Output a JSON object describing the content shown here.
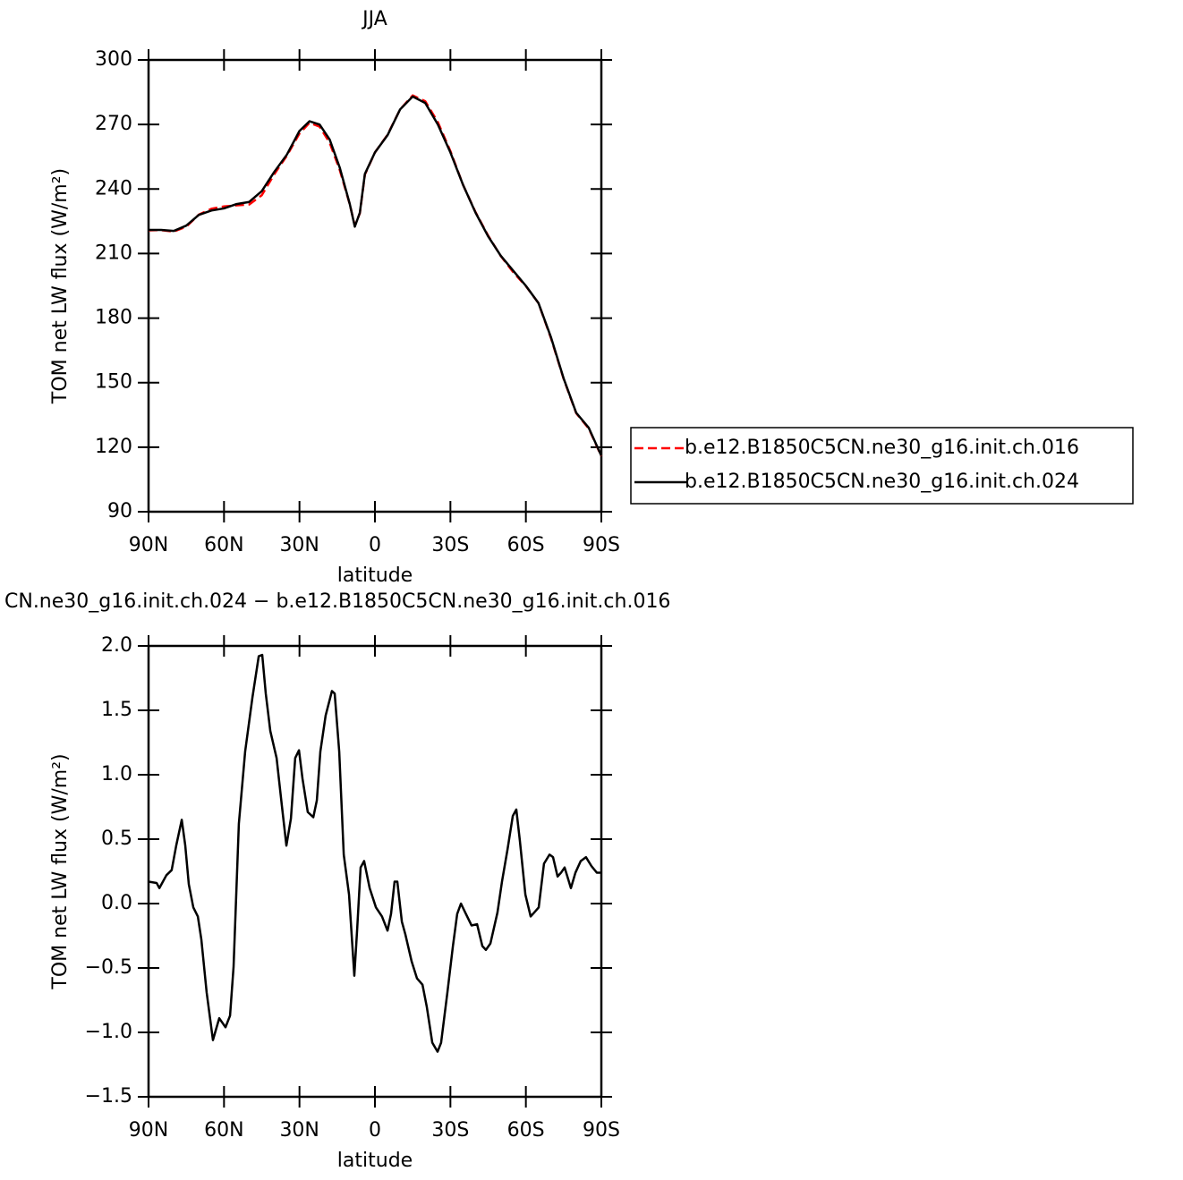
{
  "chart_data": [
    {
      "type": "line",
      "title": "JJA",
      "xlabel": "latitude",
      "ylabel": "TOM net LW flux (W/m²)",
      "x": [
        90,
        85,
        80,
        75,
        70,
        65,
        60,
        55,
        50,
        45,
        40,
        35,
        30,
        26,
        22,
        18,
        14,
        10,
        8,
        6,
        4,
        0,
        -5,
        -10,
        -15,
        -20,
        -25,
        -30,
        -35,
        -40,
        -45,
        -50,
        -55,
        -60,
        -65,
        -70,
        -75,
        -80,
        -85,
        -90
      ],
      "series": [
        {
          "name": "b.e12.B1850C5CN.ne30_g16.init.ch.016",
          "color": "#ff0000",
          "linestyle": "dashed",
          "values": [
            220.8,
            220.9,
            220.2,
            222.5,
            228.1,
            230.8,
            231.9,
            232.4,
            232.8,
            237.1,
            246.9,
            255.5,
            265.8,
            270.8,
            269,
            261.5,
            248.9,
            232.9,
            223,
            228.7,
            246.7,
            257,
            265.2,
            277,
            283.5,
            280.8,
            271.1,
            257.6,
            242,
            229.2,
            218.3,
            208.9,
            201.3,
            194.9,
            187,
            170.6,
            151.8,
            135.8,
            128.7,
            115.8
          ]
        },
        {
          "name": "b.e12.B1850C5CN.ne30_g16.init.ch.024",
          "color": "#000000",
          "linestyle": "solid",
          "values": [
            221,
            221,
            220.5,
            223,
            228,
            230,
            231,
            233,
            234,
            239,
            248,
            256,
            267,
            271.5,
            270,
            263,
            250,
            233,
            222.5,
            229,
            247,
            257,
            265,
            277,
            283,
            280,
            270,
            257,
            242,
            229,
            218,
            209,
            202,
            195,
            187,
            171,
            152,
            136,
            129,
            116
          ]
        }
      ],
      "xlim": [
        90,
        -90
      ],
      "xticks": [
        {
          "value": 90,
          "label": "90N"
        },
        {
          "value": 60,
          "label": "60N"
        },
        {
          "value": 30,
          "label": "30N"
        },
        0,
        {
          "value": -30,
          "label": "30S"
        },
        {
          "value": -60,
          "label": "60S"
        },
        {
          "value": -90,
          "label": "90S"
        }
      ],
      "ylim": [
        90,
        300
      ],
      "yticks": [
        90,
        120,
        150,
        180,
        210,
        240,
        270,
        300
      ],
      "legend": "right"
    },
    {
      "type": "line",
      "title": "CN.ne30_g16.init.ch.024 − b.e12.B1850C5CN.ne30_g16.init.ch.016",
      "xlabel": "latitude",
      "ylabel": "TOM net LW flux (W/m²)",
      "x": [
        90,
        86.8,
        85.7,
        82.9,
        80.8,
        79,
        76.8,
        75.4,
        74,
        72.2,
        70.4,
        69,
        66.9,
        64.4,
        61.9,
        59.4,
        57.6,
        56.2,
        54.1,
        51.6,
        48.7,
        46.2,
        44.8,
        43.4,
        41.6,
        39.1,
        37,
        35.2,
        33.4,
        31.7,
        30.2,
        28.8,
        26.7,
        24.5,
        23.1,
        21.7,
        19.6,
        17.1,
        16,
        14.2,
        12.4,
        10.3,
        8.2,
        7.1,
        5.7,
        4.3,
        2.1,
        -0.4,
        -2.8,
        -5,
        -6.4,
        -7.8,
        -8.9,
        -10.7,
        -12.1,
        -14.6,
        -16.7,
        -18.9,
        -20.6,
        -22.8,
        -24.9,
        -26.3,
        -28.8,
        -31,
        -32.7,
        -34.2,
        -35.9,
        -38.4,
        -40.6,
        -42.7,
        -44.1,
        -45.9,
        -48.7,
        -50.5,
        -52.7,
        -54.8,
        -56.2,
        -57.6,
        -59.8,
        -61.9,
        -63.3,
        -65.1,
        -67.2,
        -69.4,
        -70.8,
        -72.6,
        -74,
        -75.4,
        -77.9,
        -79.7,
        -81.8,
        -83.9,
        -86.1,
        -88.2,
        -90
      ],
      "values": [
        0.17,
        0.16,
        0.12,
        0.22,
        0.26,
        0.45,
        0.65,
        0.45,
        0.15,
        -0.03,
        -0.1,
        -0.28,
        -0.69,
        -1.06,
        -0.89,
        -0.96,
        -0.87,
        -0.49,
        0.62,
        1.18,
        1.6,
        1.92,
        1.93,
        1.63,
        1.34,
        1.13,
        0.76,
        0.45,
        0.66,
        1.13,
        1.19,
        0.97,
        0.71,
        0.67,
        0.8,
        1.18,
        1.46,
        1.65,
        1.63,
        1.18,
        0.38,
        0.07,
        -0.56,
        -0.21,
        0.28,
        0.33,
        0.12,
        -0.03,
        -0.1,
        -0.21,
        -0.08,
        0.17,
        0.17,
        -0.14,
        -0.24,
        -0.45,
        -0.58,
        -0.63,
        -0.8,
        -1.08,
        -1.15,
        -1.08,
        -0.69,
        -0.33,
        -0.08,
        0,
        -0.07,
        -0.17,
        -0.16,
        -0.33,
        -0.36,
        -0.31,
        -0.07,
        0.17,
        0.42,
        0.68,
        0.73,
        0.49,
        0.07,
        -0.1,
        -0.07,
        -0.03,
        0.31,
        0.38,
        0.36,
        0.21,
        0.24,
        0.28,
        0.12,
        0.24,
        0.33,
        0.36,
        0.29,
        0.24,
        0.24
      ],
      "color": "#000000",
      "xlim": [
        90,
        -90
      ],
      "xticks": [
        {
          "value": 90,
          "label": "90N"
        },
        {
          "value": 60,
          "label": "60N"
        },
        {
          "value": 30,
          "label": "30N"
        },
        0,
        {
          "value": -30,
          "label": "30S"
        },
        {
          "value": -60,
          "label": "60S"
        },
        {
          "value": -90,
          "label": "90S"
        }
      ],
      "ylim": [
        -1.5,
        2.0
      ],
      "yticks": [
        {
          "value": -1.5,
          "label": "−1.5"
        },
        {
          "value": -1.0,
          "label": "−1.0"
        },
        {
          "value": -0.5,
          "label": "−0.5"
        },
        {
          "value": 0,
          "label": "0.0"
        },
        0.5,
        {
          "value": 1.0,
          "label": "1.0"
        },
        1.5,
        {
          "value": 2.0,
          "label": "2.0"
        }
      ]
    }
  ]
}
